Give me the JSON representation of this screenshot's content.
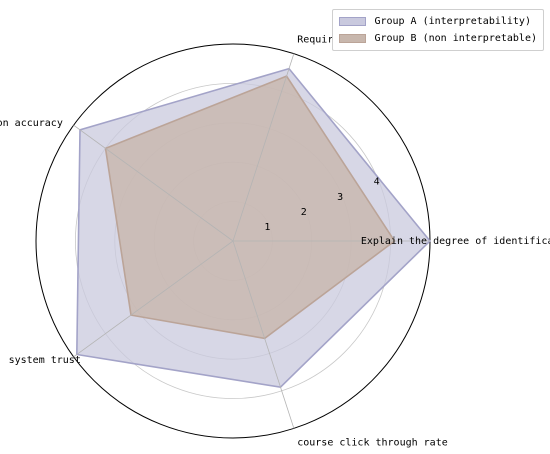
{
  "chart_data": {
    "type": "radar",
    "title": "",
    "axes": [
      "Explain the degree of identification",
      "Requirement satisfaction",
      "recommendation accuracy",
      "system trust",
      "course click through rate"
    ],
    "radial_ticks": [
      "1",
      "2",
      "3",
      "4"
    ],
    "rlim": [
      0,
      5
    ],
    "grid": true,
    "legend_position": "top-right",
    "series": [
      {
        "name": "Group A (interpretability)",
        "values": [
          5.0,
          4.6,
          4.8,
          4.9,
          3.9
        ],
        "fill": "#c9c9de",
        "stroke": "#a3a3c8"
      },
      {
        "name": "Group B (non interpretable)",
        "values": [
          4.1,
          4.4,
          4.0,
          3.2,
          2.6
        ],
        "fill": "#c8b7ad",
        "stroke": "#bba498"
      }
    ]
  }
}
